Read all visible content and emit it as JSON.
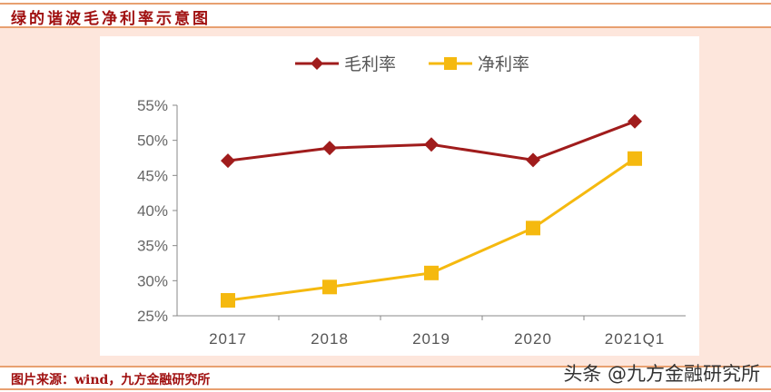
{
  "header": {
    "title": "绿的谐波毛净利率示意图"
  },
  "footer": {
    "source": "图片来源：wind，九方金融研究所",
    "watermark": "头条 @九方金融研究所"
  },
  "chart_data": {
    "type": "line",
    "categories": [
      "2017",
      "2018",
      "2019",
      "2020",
      "2021Q1"
    ],
    "series": [
      {
        "name": "毛利率",
        "values": [
          47.1,
          48.9,
          49.4,
          47.2,
          52.7
        ],
        "color": "#a01c1c",
        "marker": "diamond"
      },
      {
        "name": "净利率",
        "values": [
          27.2,
          29.1,
          31.1,
          37.5,
          47.4
        ],
        "color": "#f5b90f",
        "marker": "square"
      }
    ],
    "yticks": [
      "25%",
      "30%",
      "35%",
      "40%",
      "45%",
      "50%",
      "55%"
    ],
    "ylim": [
      25,
      55
    ],
    "legend": "top",
    "grid": false
  }
}
